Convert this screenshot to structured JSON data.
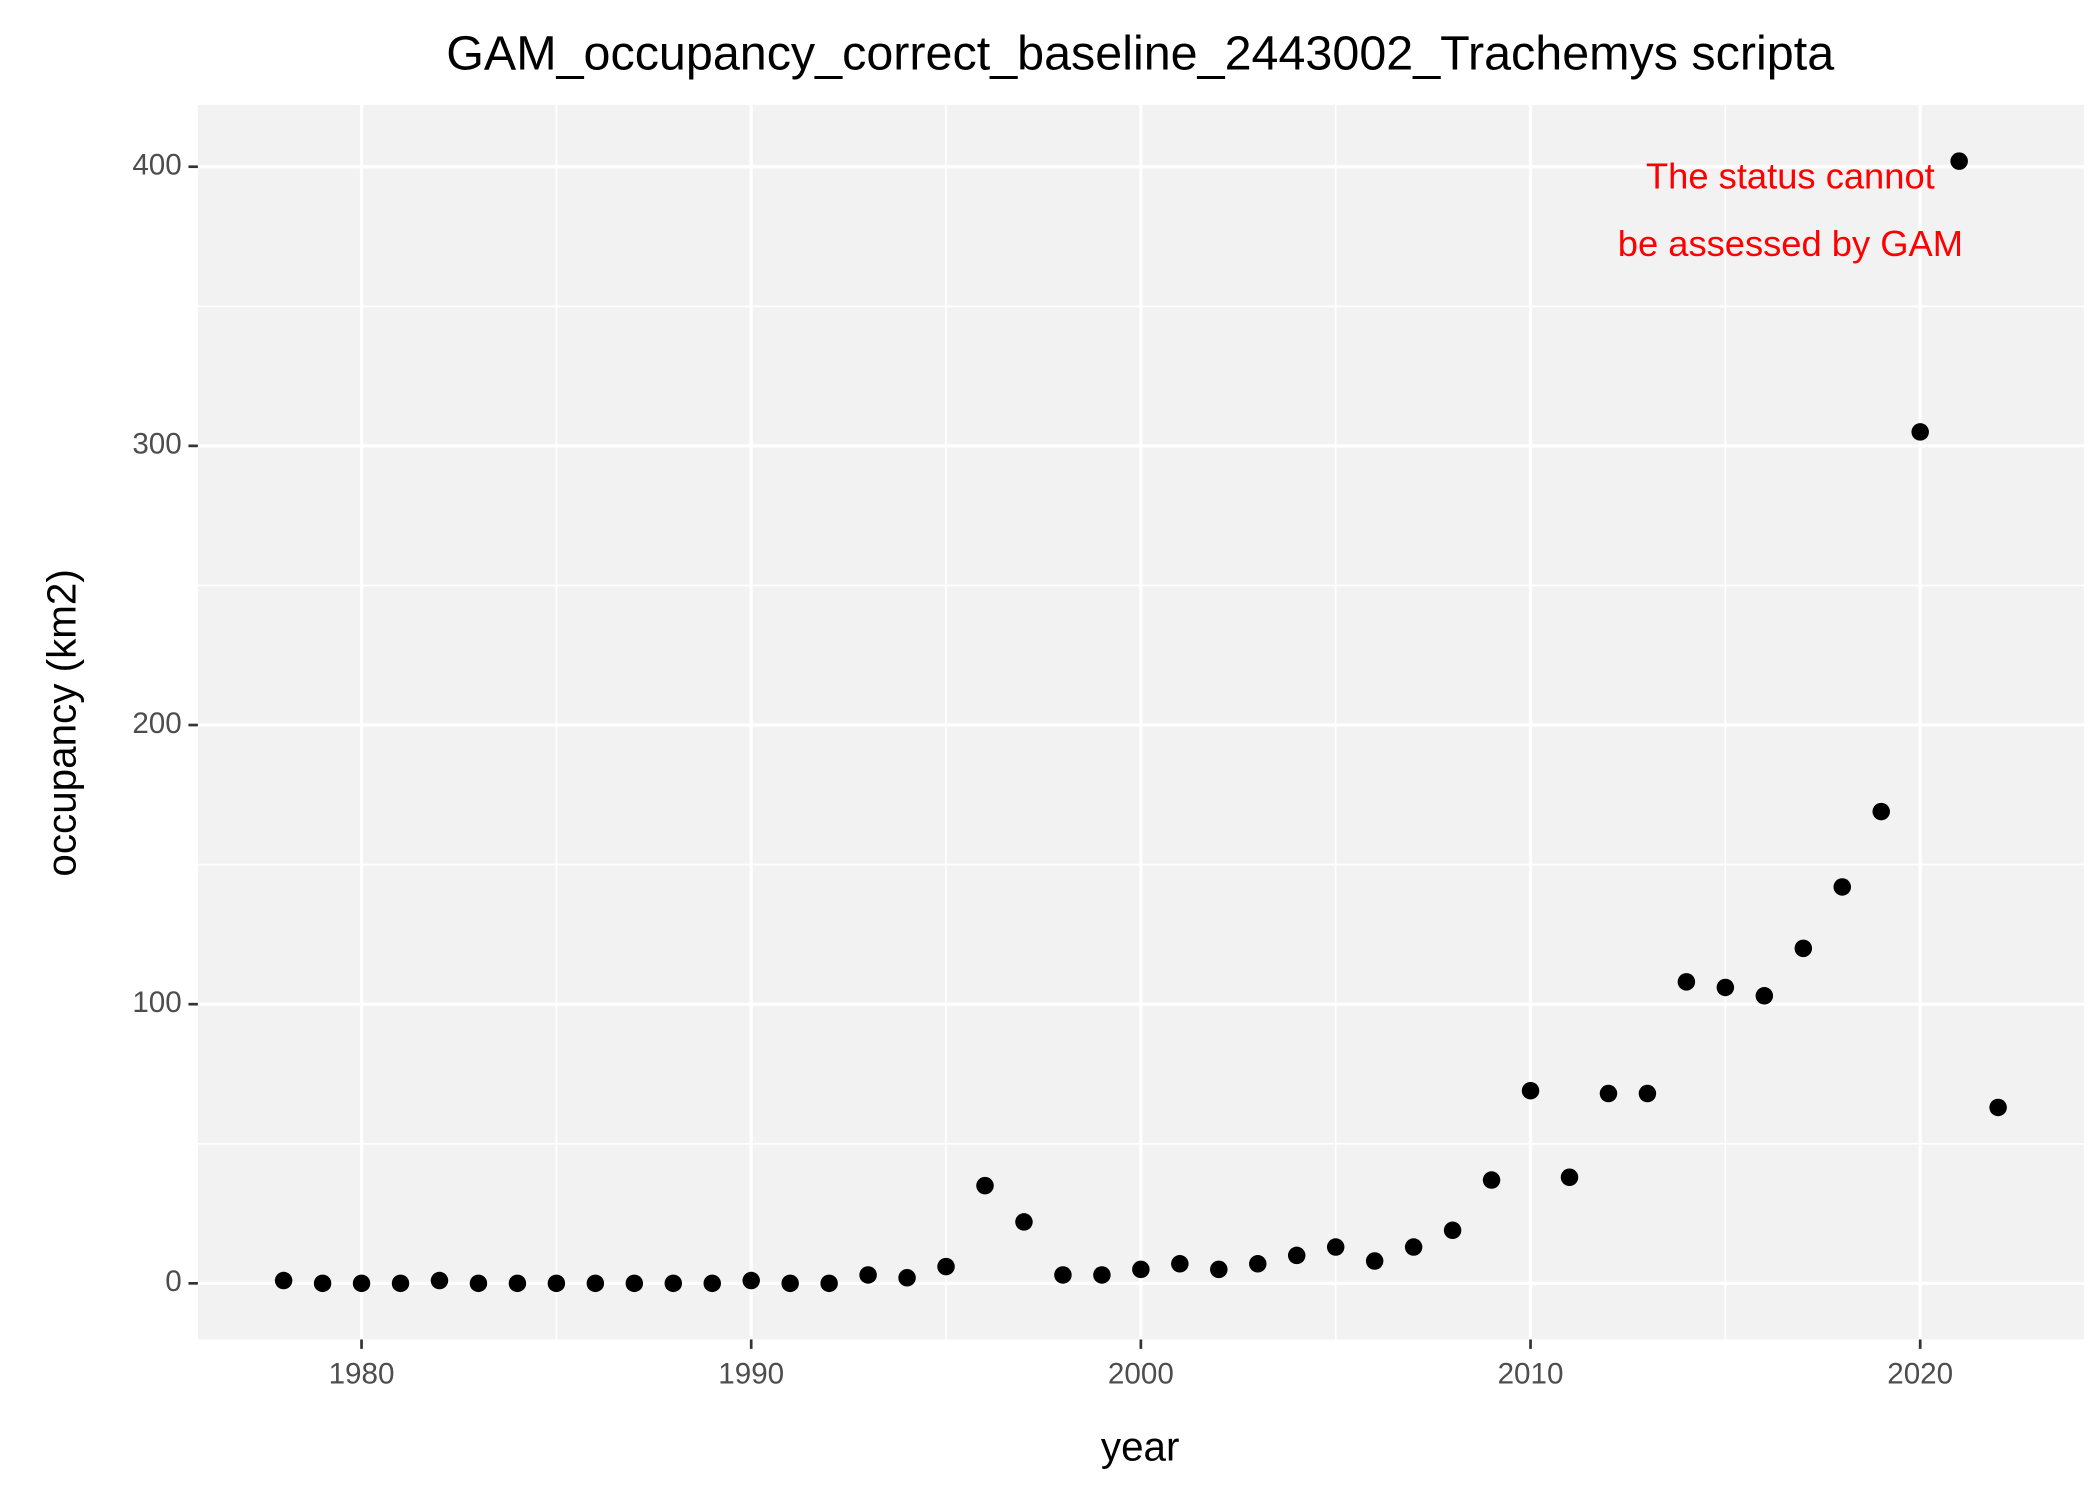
{
  "chart_data": {
    "type": "scatter",
    "title": "GAM_occupancy_correct_baseline_2443002_Trachemys scripta",
    "x_label": "year",
    "y_label": "occupancy (km2)",
    "annotation": [
      "The status cannot",
      "be assessed by GAM"
    ],
    "annotation_color": "#ff0000",
    "color": "#000000",
    "x": [
      1978,
      1979,
      1980,
      1981,
      1982,
      1983,
      1984,
      1985,
      1986,
      1987,
      1988,
      1989,
      1990,
      1991,
      1992,
      1993,
      1994,
      1995,
      1996,
      1997,
      1998,
      1999,
      2000,
      2001,
      2002,
      2003,
      2004,
      2005,
      2006,
      2007,
      2008,
      2009,
      2010,
      2011,
      2012,
      2013,
      2014,
      2015,
      2016,
      2017,
      2018,
      2019,
      2020,
      2021,
      2022
    ],
    "values": [
      1,
      0,
      0,
      0,
      1,
      0,
      0,
      0,
      0,
      0,
      0,
      0,
      1,
      0,
      0,
      3,
      2,
      6,
      35,
      22,
      3,
      3,
      5,
      7,
      5,
      7,
      10,
      13,
      8,
      13,
      19,
      37,
      69,
      38,
      68,
      68,
      108,
      106,
      103,
      120,
      142,
      169,
      305,
      402,
      63
    ],
    "xlim": [
      1975.8,
      2024.2
    ],
    "ylim": [
      -20.1,
      422.1
    ],
    "xticks": [
      1980,
      1990,
      2000,
      2010,
      2020
    ],
    "yticks": [
      0,
      100,
      200,
      300,
      400
    ],
    "grid": true
  }
}
